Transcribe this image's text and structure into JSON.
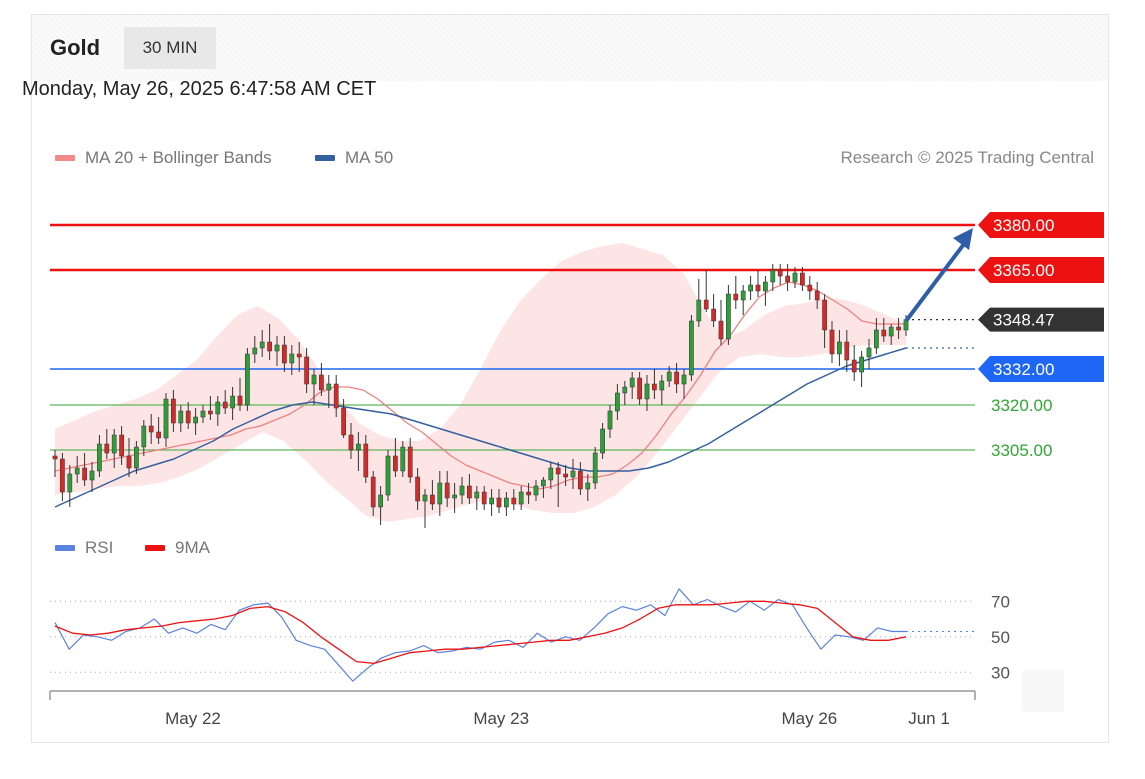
{
  "header": {
    "instrument": "Gold",
    "timeframe": "30 MIN"
  },
  "timestamp": "Monday, May 26, 2025 6:47:58 AM CET",
  "legend": {
    "ma20_label": "MA 20 + Bollinger Bands",
    "ma50_label": "MA 50"
  },
  "copyright": "Research © 2025 Trading Central",
  "rsi_legend": {
    "rsi_label": "RSI",
    "ma_label": "9MA"
  },
  "colors": {
    "resistance": "#ee1111",
    "pivot": "#1e66f5",
    "support": "#33a633",
    "ma20": "#f08080",
    "ma50": "#35609f",
    "bands": "#fde0e0",
    "rsi": "#5a82e0",
    "rsi_ma": "#ee1111",
    "up_candle": "#2e9e3a",
    "down_candle": "#d42a2a",
    "arrow": "#2f5ea8"
  },
  "chart_data": [
    {
      "type": "candlestick",
      "title": "Gold",
      "y_range": [
        3275,
        3395
      ],
      "x_range": [
        0,
        200
      ],
      "x_ticks": [
        {
          "x": 30,
          "label": "May 22"
        },
        {
          "x": 97,
          "label": "May 23"
        },
        {
          "x": 164,
          "label": "May 26"
        },
        {
          "x": 190,
          "label": "Jun 1"
        }
      ],
      "last_price": "3348.47",
      "levels": [
        {
          "value": 3380,
          "label": "3380.00",
          "kind": "resistance"
        },
        {
          "value": 3365,
          "label": "3365.00",
          "kind": "resistance"
        },
        {
          "value": 3348.47,
          "label": "3348.47",
          "kind": "last"
        },
        {
          "value": 3332,
          "label": "3332.00",
          "kind": "pivot"
        },
        {
          "value": 3320,
          "label": "3320.00",
          "kind": "support"
        },
        {
          "value": 3305,
          "label": "3305.00",
          "kind": "support"
        }
      ],
      "forecast_arrow": {
        "from": [
          185,
          3348
        ],
        "to": [
          200,
          3379
        ]
      },
      "ma_projection_value": 3339,
      "candles": [
        [
          3303,
          3305,
          3296,
          3302
        ],
        [
          3302,
          3304,
          3288,
          3291
        ],
        [
          3291,
          3300,
          3286,
          3297
        ],
        [
          3297,
          3303,
          3294,
          3299
        ],
        [
          3299,
          3304,
          3293,
          3295
        ],
        [
          3295,
          3301,
          3291,
          3298
        ],
        [
          3298,
          3310,
          3296,
          3307
        ],
        [
          3307,
          3312,
          3302,
          3304
        ],
        [
          3304,
          3312,
          3299,
          3310
        ],
        [
          3310,
          3313,
          3300,
          3303
        ],
        [
          3303,
          3309,
          3296,
          3299
        ],
        [
          3299,
          3308,
          3297,
          3306
        ],
        [
          3306,
          3315,
          3303,
          3313
        ],
        [
          3313,
          3317,
          3307,
          3311
        ],
        [
          3311,
          3316,
          3307,
          3309
        ],
        [
          3309,
          3324,
          3306,
          3322
        ],
        [
          3322,
          3325,
          3311,
          3314
        ],
        [
          3314,
          3320,
          3311,
          3318
        ],
        [
          3318,
          3321,
          3312,
          3314
        ],
        [
          3314,
          3319,
          3310,
          3316
        ],
        [
          3316,
          3320,
          3314,
          3318
        ],
        [
          3318,
          3323,
          3315,
          3317
        ],
        [
          3317,
          3323,
          3313,
          3321
        ],
        [
          3321,
          3325,
          3317,
          3319
        ],
        [
          3319,
          3326,
          3315,
          3323
        ],
        [
          3323,
          3329,
          3318,
          3320
        ],
        [
          3320,
          3339,
          3318,
          3337
        ],
        [
          3337,
          3343,
          3334,
          3339
        ],
        [
          3339,
          3345,
          3336,
          3341
        ],
        [
          3341,
          3347,
          3335,
          3338
        ],
        [
          3338,
          3343,
          3333,
          3340
        ],
        [
          3340,
          3343,
          3331,
          3334
        ],
        [
          3334,
          3340,
          3330,
          3337
        ],
        [
          3337,
          3341,
          3331,
          3336
        ],
        [
          3336,
          3339,
          3324,
          3327
        ],
        [
          3327,
          3332,
          3320,
          3330
        ],
        [
          3330,
          3334,
          3323,
          3325
        ],
        [
          3325,
          3330,
          3319,
          3327
        ],
        [
          3327,
          3330,
          3316,
          3319
        ],
        [
          3319,
          3322,
          3309,
          3310
        ],
        [
          3310,
          3314,
          3302,
          3305
        ],
        [
          3305,
          3311,
          3298,
          3307
        ],
        [
          3307,
          3310,
          3294,
          3296
        ],
        [
          3296,
          3298,
          3283,
          3286
        ],
        [
          3286,
          3293,
          3280,
          3290
        ],
        [
          3290,
          3305,
          3288,
          3303
        ],
        [
          3303,
          3309,
          3296,
          3298
        ],
        [
          3298,
          3308,
          3296,
          3306
        ],
        [
          3306,
          3309,
          3294,
          3296
        ],
        [
          3296,
          3299,
          3285,
          3288
        ],
        [
          3288,
          3292,
          3279,
          3290
        ],
        [
          3290,
          3295,
          3285,
          3287
        ],
        [
          3287,
          3298,
          3283,
          3294
        ],
        [
          3294,
          3298,
          3286,
          3289
        ],
        [
          3289,
          3294,
          3284,
          3290
        ],
        [
          3290,
          3296,
          3287,
          3293
        ],
        [
          3293,
          3297,
          3287,
          3289
        ],
        [
          3289,
          3293,
          3285,
          3291
        ],
        [
          3291,
          3293,
          3285,
          3287
        ],
        [
          3287,
          3292,
          3283,
          3289
        ],
        [
          3289,
          3292,
          3284,
          3286
        ],
        [
          3286,
          3291,
          3283,
          3289
        ],
        [
          3289,
          3292,
          3285,
          3287
        ],
        [
          3287,
          3293,
          3285,
          3291
        ],
        [
          3291,
          3294,
          3287,
          3290
        ],
        [
          3290,
          3295,
          3288,
          3293
        ],
        [
          3293,
          3296,
          3289,
          3295
        ],
        [
          3295,
          3301,
          3292,
          3299
        ],
        [
          3299,
          3301,
          3286,
          3297
        ],
        [
          3297,
          3300,
          3293,
          3296
        ],
        [
          3296,
          3302,
          3292,
          3298
        ],
        [
          3298,
          3301,
          3290,
          3292
        ],
        [
          3292,
          3297,
          3288,
          3294
        ],
        [
          3294,
          3306,
          3292,
          3304
        ],
        [
          3304,
          3314,
          3302,
          3312
        ],
        [
          3312,
          3320,
          3309,
          3318
        ],
        [
          3318,
          3327,
          3315,
          3324
        ],
        [
          3324,
          3328,
          3320,
          3326
        ],
        [
          3326,
          3331,
          3322,
          3329
        ],
        [
          3329,
          3331,
          3320,
          3322
        ],
        [
          3322,
          3330,
          3318,
          3327
        ],
        [
          3327,
          3332,
          3322,
          3325
        ],
        [
          3325,
          3330,
          3320,
          3328
        ],
        [
          3328,
          3333,
          3326,
          3331
        ],
        [
          3331,
          3334,
          3324,
          3327
        ],
        [
          3327,
          3332,
          3322,
          3330
        ],
        [
          3330,
          3350,
          3328,
          3348
        ],
        [
          3348,
          3362,
          3346,
          3355
        ],
        [
          3355,
          3365,
          3351,
          3352
        ],
        [
          3352,
          3357,
          3346,
          3348
        ],
        [
          3348,
          3355,
          3340,
          3342
        ],
        [
          3342,
          3360,
          3340,
          3357
        ],
        [
          3357,
          3363,
          3352,
          3355
        ],
        [
          3355,
          3360,
          3350,
          3358
        ],
        [
          3358,
          3363,
          3355,
          3360
        ],
        [
          3360,
          3365,
          3356,
          3358
        ],
        [
          3358,
          3363,
          3353,
          3361
        ],
        [
          3361,
          3367,
          3358,
          3365
        ],
        [
          3365,
          3367,
          3360,
          3363
        ],
        [
          3363,
          3367,
          3358,
          3361
        ],
        [
          3361,
          3366,
          3359,
          3364
        ],
        [
          3364,
          3366,
          3358,
          3360
        ],
        [
          3360,
          3363,
          3355,
          3358
        ],
        [
          3358,
          3361,
          3352,
          3355
        ],
        [
          3355,
          3357,
          3339,
          3345
        ],
        [
          3345,
          3348,
          3334,
          3337
        ],
        [
          3337,
          3345,
          3333,
          3341
        ],
        [
          3341,
          3345,
          3331,
          3335
        ],
        [
          3335,
          3340,
          3328,
          3331
        ],
        [
          3331,
          3338,
          3326,
          3336
        ],
        [
          3336,
          3342,
          3332,
          3339
        ],
        [
          3339,
          3349,
          3337,
          3345
        ],
        [
          3345,
          3349,
          3341,
          3343
        ],
        [
          3343,
          3347,
          3340,
          3346
        ],
        [
          3346,
          3349,
          3342,
          3345
        ],
        [
          3345,
          3350,
          3343,
          3348.47
        ]
      ],
      "ma20": [
        3298,
        3299,
        3300,
        3301,
        3302,
        3303,
        3304,
        3305,
        3306,
        3307,
        3308,
        3309,
        3310,
        3312,
        3313,
        3315,
        3317,
        3320,
        3324,
        3326,
        3326,
        3325,
        3322,
        3318,
        3314,
        3311,
        3307,
        3303,
        3300,
        3298,
        3296,
        3294,
        3293,
        3292,
        3293,
        3295,
        3296,
        3296,
        3297,
        3300,
        3304,
        3310,
        3317,
        3323,
        3330,
        3338,
        3343,
        3350,
        3356,
        3359,
        3361,
        3360,
        3358,
        3355,
        3352,
        3348,
        3347,
        3347,
        3347
      ],
      "ma50": [
        3286,
        3289,
        3292,
        3295,
        3298,
        3300,
        3302,
        3305,
        3308,
        3312,
        3315,
        3318,
        3320,
        3321,
        3320,
        3319,
        3318,
        3317,
        3315,
        3313,
        3311,
        3309,
        3307,
        3305,
        3303,
        3301,
        3299,
        3298,
        3298,
        3298,
        3299,
        3301,
        3304,
        3307,
        3311,
        3315,
        3319,
        3323,
        3327,
        3330,
        3333,
        3335,
        3337,
        3339
      ],
      "bb_upper": [
        3312,
        3315,
        3318,
        3320,
        3322,
        3325,
        3330,
        3335,
        3343,
        3350,
        3353,
        3349,
        3342,
        3332,
        3322,
        3314,
        3310,
        3308,
        3308,
        3312,
        3320,
        3332,
        3345,
        3355,
        3362,
        3368,
        3371,
        3373,
        3374,
        3372,
        3370,
        3364,
        3352,
        3342,
        3345,
        3350,
        3353,
        3354,
        3356,
        3355,
        3353,
        3350,
        3347
      ],
      "bb_lower": [
        3290,
        3291,
        3292,
        3293,
        3293,
        3294,
        3296,
        3299,
        3303,
        3307,
        3311,
        3308,
        3302,
        3295,
        3289,
        3283,
        3281,
        3282,
        3283,
        3285,
        3287,
        3289,
        3287,
        3285,
        3284,
        3284,
        3286,
        3290,
        3296,
        3304,
        3313,
        3322,
        3331,
        3336,
        3337,
        3336,
        3336,
        3337,
        3339,
        3340,
        3340,
        3340
      ]
    },
    {
      "type": "line",
      "title": "RSI",
      "y_range": [
        20,
        82
      ],
      "y_ticks": [
        30,
        50,
        70
      ],
      "series": [
        {
          "name": "RSI",
          "values": [
            58,
            43,
            51,
            50,
            48,
            53,
            55,
            60,
            52,
            55,
            52,
            57,
            54,
            65,
            68,
            69,
            61,
            48,
            45,
            43,
            34,
            25,
            32,
            38,
            41,
            42,
            45,
            41,
            42,
            44,
            43,
            47,
            48,
            44,
            52,
            47,
            50,
            48,
            55,
            63,
            67,
            65,
            68,
            62,
            77,
            68,
            71,
            67,
            64,
            70,
            65,
            71,
            68,
            55,
            43,
            51,
            50,
            48,
            55,
            53,
            53
          ]
        },
        {
          "name": "9MA",
          "values": [
            56,
            52,
            51,
            52,
            54,
            55,
            56,
            58,
            59,
            60,
            62,
            66,
            67,
            64,
            58,
            50,
            43,
            36,
            35,
            38,
            41,
            42,
            43,
            43,
            44,
            45,
            46,
            47,
            48,
            48,
            50,
            52,
            55,
            60,
            66,
            68,
            68,
            68,
            69,
            70,
            70,
            69,
            68,
            66,
            58,
            50,
            48,
            48,
            50
          ]
        }
      ]
    }
  ]
}
